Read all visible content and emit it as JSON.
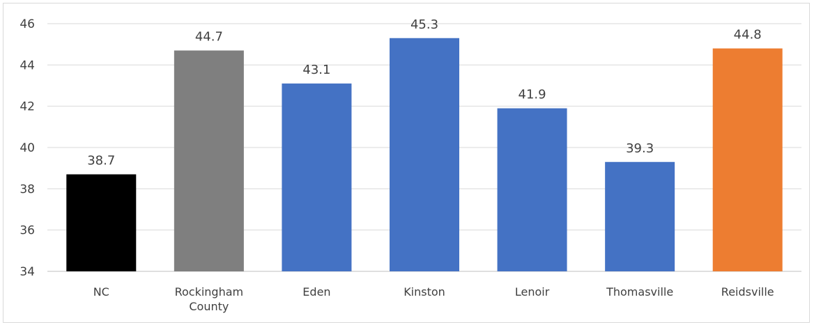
{
  "chart_data": {
    "type": "bar",
    "title": "",
    "xlabel": "",
    "ylabel": "",
    "categories": [
      [
        "NC"
      ],
      [
        "Rockingham",
        "County"
      ],
      [
        "Eden"
      ],
      [
        "Kinston"
      ],
      [
        "Lenoir"
      ],
      [
        "Thomasville"
      ],
      [
        "Reidsville"
      ]
    ],
    "values": [
      38.7,
      44.7,
      43.1,
      45.3,
      41.9,
      39.3,
      44.8
    ],
    "value_labels": [
      "38.7",
      "44.7",
      "43.1",
      "45.3",
      "41.9",
      "39.3",
      "44.8"
    ],
    "bar_colors": [
      "#000000",
      "#7f7f7f",
      "#4472c4",
      "#4472c4",
      "#4472c4",
      "#4472c4",
      "#ed7d31"
    ],
    "ylim": [
      34,
      46
    ],
    "yticks": [
      34,
      36,
      38,
      40,
      42,
      44,
      46
    ],
    "grid": true,
    "legend": "none"
  }
}
